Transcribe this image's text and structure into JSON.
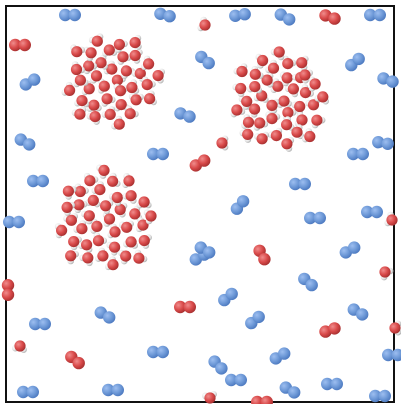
{
  "colors": {
    "background": "#ffffff",
    "frame": "#111111",
    "blue_molecule": "#6f9ad8",
    "blue_molecule_shade": "#4f7fc7",
    "oxygen": "#d94a4a",
    "oxygen_shade": "#b93535",
    "hydrogen": "#ececec",
    "hydrogen_shade": "#bdbdbd"
  },
  "scene": {
    "description_visible_text": []
  }
}
